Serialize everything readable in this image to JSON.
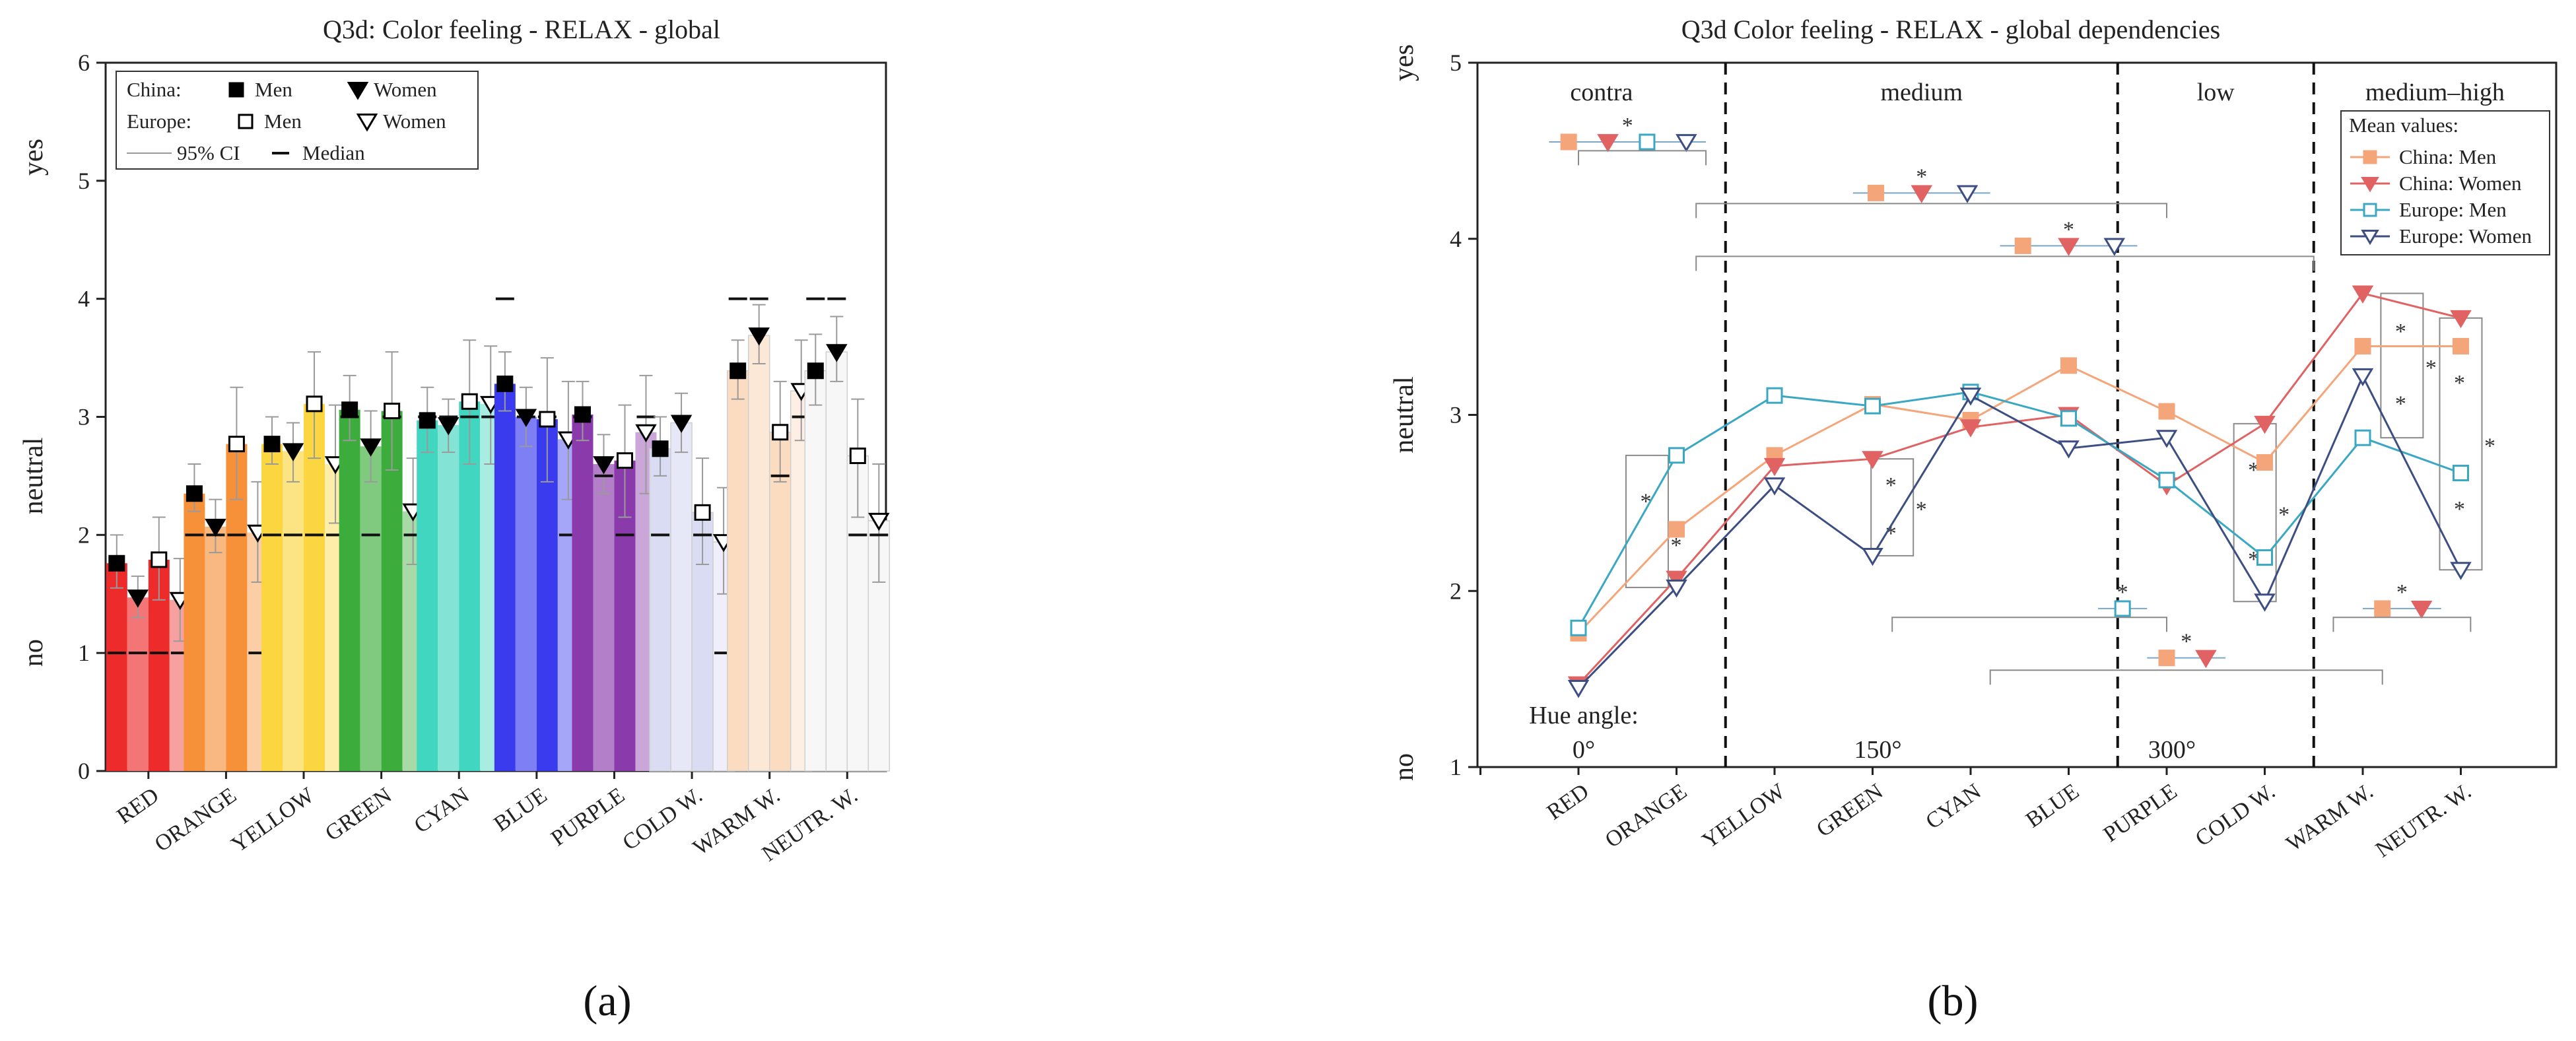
{
  "subfigure_labels": [
    "(a)",
    "(b)"
  ],
  "colors": {
    "RED": "#ee2b2b",
    "ORANGE": "#f6913a",
    "YELLOW": "#fbd640",
    "GREEN": "#3cad3c",
    "CYAN": "#40d6bf",
    "BLUE": "#3a3aef",
    "PURPLE": "#8a3aab",
    "COLD W.": "#d9dcf3",
    "WARM W.": "#fbdcc1",
    "NEUTR. W.": "#f2f2f2",
    "china_men": "#f5a57a",
    "china_women": "#e06262",
    "europe_men": "#3aa8c2",
    "europe_women": "#3d4e82"
  },
  "chart_data": [
    {
      "type": "bar",
      "title": "Q3d: Color feeling - RELAX -  global",
      "xlabel": "",
      "ylabel_labels": [
        {
          "label": "no",
          "y": 1
        },
        {
          "label": "neutral",
          "y": 2.5
        },
        {
          "label": "yes",
          "y": 5.2
        }
      ],
      "ylim": [
        0,
        6
      ],
      "yticks": [
        "0",
        "1",
        "2",
        "3",
        "4",
        "5",
        "6"
      ],
      "categories": [
        "RED",
        "ORANGE",
        "YELLOW",
        "GREEN",
        "CYAN",
        "BLUE",
        "PURPLE",
        "COLD W.",
        "WARM W.",
        "NEUTR. W."
      ],
      "series": [
        {
          "name": "China: Men",
          "marker": "filled-square",
          "values": [
            1.76,
            2.35,
            2.77,
            3.06,
            2.97,
            3.28,
            3.02,
            2.73,
            3.39,
            3.39
          ],
          "ci_low": [
            1.55,
            2.2,
            2.6,
            2.8,
            2.7,
            3.05,
            2.8,
            2.5,
            3.15,
            3.1
          ],
          "ci_high": [
            2.0,
            2.6,
            3.0,
            3.35,
            3.25,
            3.55,
            3.3,
            3.0,
            3.65,
            3.7
          ],
          "median": [
            1,
            2,
            2,
            3,
            3,
            4,
            3,
            2,
            4,
            4
          ]
        },
        {
          "name": "China: Women",
          "marker": "filled-triangle-down",
          "values": [
            1.47,
            2.07,
            2.71,
            2.75,
            2.93,
            3.0,
            2.6,
            2.95,
            3.69,
            3.55
          ],
          "ci_low": [
            1.3,
            1.85,
            2.45,
            2.45,
            2.7,
            2.75,
            2.35,
            2.7,
            3.45,
            3.3
          ],
          "ci_high": [
            1.65,
            2.3,
            2.95,
            3.05,
            3.15,
            3.25,
            2.85,
            3.2,
            3.95,
            3.85
          ],
          "median": [
            1,
            2,
            2,
            2,
            3,
            3,
            2.5,
            3,
            4,
            4
          ]
        },
        {
          "name": "Europe: Men",
          "marker": "open-square",
          "values": [
            1.79,
            2.77,
            3.11,
            3.05,
            3.13,
            2.98,
            2.63,
            2.19,
            2.87,
            2.67
          ],
          "ci_low": [
            1.45,
            2.3,
            2.65,
            2.55,
            2.6,
            2.45,
            2.15,
            1.75,
            2.45,
            2.15
          ],
          "ci_high": [
            2.15,
            3.25,
            3.55,
            3.55,
            3.65,
            3.5,
            3.1,
            2.65,
            3.3,
            3.15
          ],
          "median": [
            1,
            2,
            2,
            3,
            3,
            3,
            2,
            2,
            2.5,
            2
          ]
        },
        {
          "name": "Europe: Women",
          "marker": "open-triangle-down",
          "values": [
            1.45,
            2.02,
            2.6,
            2.2,
            3.11,
            2.81,
            2.87,
            1.94,
            3.22,
            2.12
          ],
          "ci_low": [
            1.1,
            1.6,
            2.1,
            1.75,
            2.6,
            2.3,
            2.35,
            1.5,
            2.8,
            1.6
          ],
          "ci_high": [
            1.8,
            2.45,
            3.1,
            2.65,
            3.6,
            3.3,
            3.35,
            2.4,
            3.65,
            2.6
          ],
          "median": [
            1,
            1,
            2,
            2,
            3,
            2,
            3,
            1,
            3,
            2
          ]
        }
      ],
      "legend": {
        "position": "top-left",
        "china_label": "China:",
        "europe_label": "Europe:",
        "men": "Men",
        "women": "Women",
        "ci_label": "95% CI",
        "median_label": "Median"
      }
    },
    {
      "type": "line",
      "title": "Q3d Color feeling - RELAX - global dependencies",
      "ylabel_labels": [
        {
          "label": "no",
          "y": 1
        },
        {
          "label": "neutral",
          "y": 3
        },
        {
          "label": "yes",
          "y": 5
        }
      ],
      "ylim": [
        1,
        5
      ],
      "yticks": [
        "1",
        "2",
        "3",
        "4",
        "5"
      ],
      "categories": [
        "RED",
        "ORANGE",
        "YELLOW",
        "GREEN",
        "CYAN",
        "BLUE",
        "PURPLE",
        "COLD W.",
        "WARM W.",
        "NEUTR. W."
      ],
      "series": [
        {
          "name": "China: Men",
          "marker": "filled-square",
          "values": [
            1.76,
            2.35,
            2.77,
            3.06,
            2.97,
            3.28,
            3.02,
            2.73,
            3.39,
            3.39
          ]
        },
        {
          "name": "China: Women",
          "marker": "filled-triangle-down",
          "values": [
            1.47,
            2.07,
            2.71,
            2.75,
            2.93,
            3.0,
            2.6,
            2.95,
            3.69,
            3.55
          ]
        },
        {
          "name": "Europe: Men",
          "marker": "open-square",
          "values": [
            1.79,
            2.77,
            3.11,
            3.05,
            3.13,
            2.98,
            2.63,
            2.19,
            2.87,
            2.67
          ]
        },
        {
          "name": "Europe: Women",
          "marker": "open-triangle-down",
          "values": [
            1.45,
            2.02,
            2.6,
            2.2,
            3.11,
            2.81,
            2.87,
            1.94,
            3.22,
            2.12
          ]
        }
      ],
      "zones": [
        "contra",
        "medium",
        "low",
        "medium–high"
      ],
      "zone_boundaries": [
        1.5,
        5.5,
        7.5
      ],
      "hue_angle_label": "Hue angle:",
      "hue_angles": [
        {
          "label": "0°",
          "x": 0
        },
        {
          "label": "150°",
          "x": 3
        },
        {
          "label": "300°",
          "x": 6
        }
      ],
      "legend": {
        "title": "Mean values:",
        "position": "top-right"
      },
      "annotations": {
        "significance_symbol": "*"
      },
      "zone_means": [
        {
          "y": 4.55,
          "x_from": -0.3,
          "x_to": 1.3,
          "bracket_y": 4.5,
          "bracket_x": [
            0,
            1.3
          ],
          "series": [
            "China: Men",
            "China: Women",
            "Europe: Men",
            "Europe: Women"
          ]
        },
        {
          "y": 4.26,
          "x_from": 2.8,
          "x_to": 4.2,
          "bracket_y": 4.2,
          "bracket_x": [
            1.2,
            6
          ],
          "series": [
            "China: Men",
            "China: Women",
            "Europe: Women"
          ]
        },
        {
          "y": 3.96,
          "x_from": 4.3,
          "x_to": 5.7,
          "bracket_y": 3.9,
          "bracket_x": [
            1.2,
            7.5
          ],
          "series": [
            "China: Men",
            "China: Women",
            "Europe: Women"
          ]
        },
        {
          "y": 1.9,
          "x_from": 5.3,
          "x_to": 5.8,
          "bracket_y": 1.85,
          "bracket_x": [
            3.2,
            6
          ],
          "series": [
            "Europe: Men"
          ]
        },
        {
          "y": 1.62,
          "x_from": 5.8,
          "x_to": 6.6,
          "bracket_y": 1.55,
          "bracket_x": [
            4.2,
            8.2
          ],
          "series": [
            "China: Men",
            "China: Women"
          ]
        },
        {
          "y": 1.9,
          "x_from": 8.0,
          "x_to": 8.8,
          "bracket_y": 1.85,
          "bracket_x": [
            7.7,
            9.1
          ],
          "series": [
            "China: Men",
            "China: Women"
          ]
        }
      ],
      "significance_boxes": [
        {
          "x": 0.7,
          "y_low": 2.02,
          "y_high": 2.77,
          "stars": 2
        },
        {
          "x": 3.2,
          "y_low": 2.2,
          "y_high": 2.75,
          "stars": 3
        },
        {
          "x": 6.9,
          "y_low": 1.94,
          "y_high": 2.95,
          "stars": 3
        },
        {
          "x": 8.4,
          "y_low": 2.87,
          "y_high": 3.69,
          "stars": 3
        },
        {
          "x": 9.0,
          "y_low": 2.12,
          "y_high": 3.55,
          "stars": 3
        }
      ]
    }
  ]
}
